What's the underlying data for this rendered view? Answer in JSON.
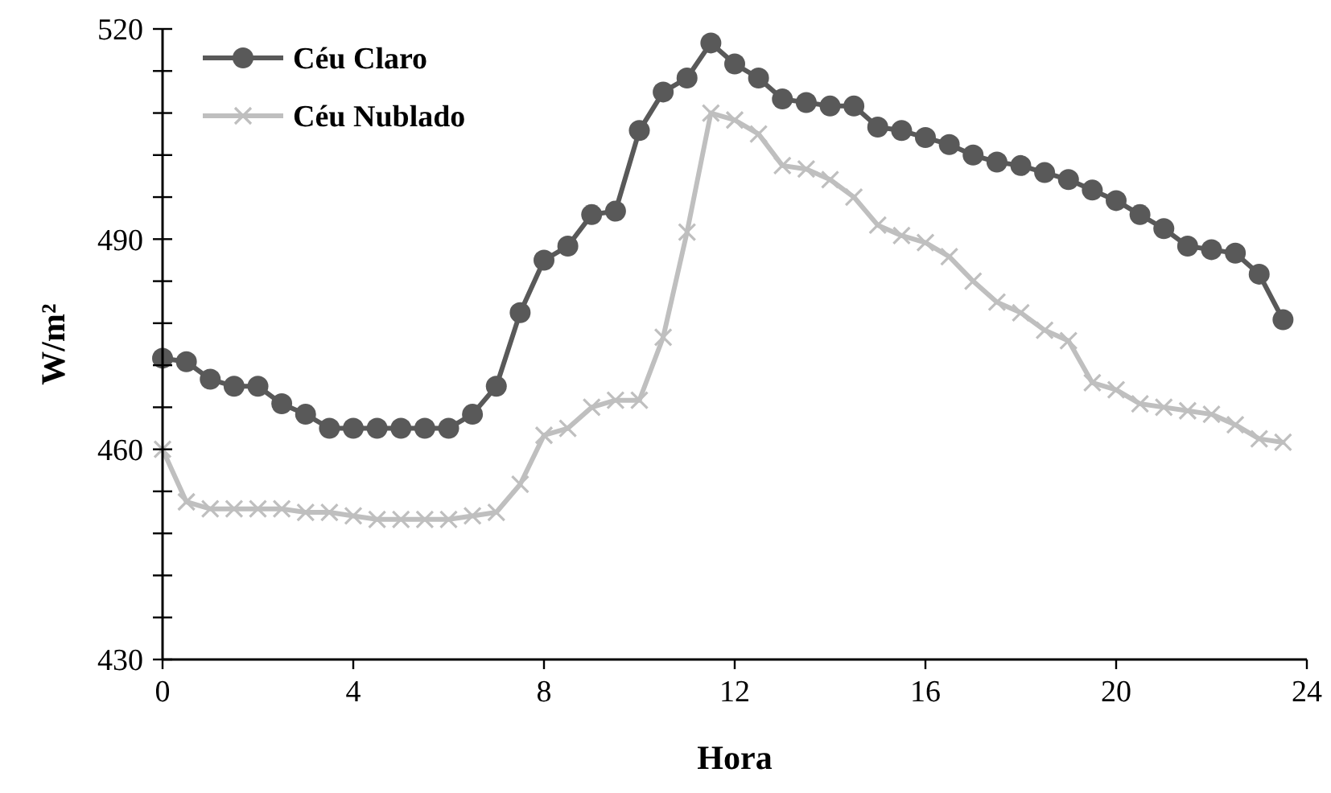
{
  "chart_data": {
    "type": "line",
    "xlabel": "Hora",
    "ylabel": "W/m²",
    "x": [
      0,
      0.5,
      1,
      1.5,
      2,
      2.5,
      3,
      3.5,
      4,
      4.5,
      5,
      5.5,
      6,
      6.5,
      7,
      7.5,
      8,
      8.5,
      9,
      9.5,
      10,
      10.5,
      11,
      11.5,
      12,
      12.5,
      13,
      13.5,
      14,
      14.5,
      15,
      15.5,
      16,
      16.5,
      17,
      17.5,
      18,
      18.5,
      19,
      19.5,
      20,
      20.5,
      21,
      21.5,
      22,
      22.5,
      23,
      23.5
    ],
    "series": [
      {
        "name": "Céu Claro",
        "color": "#595959",
        "marker": "circle",
        "values": [
          473,
          472.5,
          470,
          469,
          469,
          466.5,
          465,
          463,
          463,
          463,
          463,
          463,
          463,
          465,
          469,
          479.5,
          487,
          489,
          493.5,
          494,
          505.5,
          511,
          513,
          518,
          515,
          513,
          510,
          509.5,
          509,
          509,
          506,
          505.5,
          504.5,
          503.5,
          502,
          501,
          500.5,
          499.5,
          498.5,
          497,
          495.5,
          493.5,
          491.5,
          489,
          488.5,
          488,
          485,
          478.5
        ]
      },
      {
        "name": "Céu Nublado",
        "color": "#bfbfbf",
        "marker": "cross",
        "values": [
          460,
          452.5,
          451.5,
          451.5,
          451.5,
          451.5,
          451,
          451,
          450.5,
          450,
          450,
          450,
          450,
          450.5,
          451,
          455,
          462,
          463,
          466,
          467,
          467,
          476,
          491,
          508,
          507,
          505,
          500.5,
          500,
          498.5,
          496,
          492,
          490.5,
          489.5,
          487.5,
          484,
          481,
          479.5,
          477,
          475.5,
          469.5,
          468.5,
          466.5,
          466,
          465.5,
          465,
          463.5,
          461.5,
          461
        ]
      }
    ],
    "xlim": [
      0,
      24
    ],
    "xticks": [
      0,
      4,
      8,
      12,
      16,
      20,
      24
    ],
    "ylim": [
      430,
      520
    ],
    "yticks": [
      430,
      {
        "value": 436,
        "label": null
      },
      {
        "value": 442,
        "label": null
      },
      {
        "value": 448,
        "label": null
      },
      {
        "value": 454,
        "label": null
      },
      460,
      {
        "value": 466,
        "label": null
      },
      {
        "value": 472,
        "label": null
      },
      {
        "value": 478,
        "label": null
      },
      {
        "value": 484,
        "label": null
      },
      490,
      {
        "value": 496,
        "label": null
      },
      {
        "value": 502,
        "label": null
      },
      {
        "value": 508,
        "label": null
      },
      {
        "value": 514,
        "label": null
      },
      520
    ],
    "grid": false,
    "legend": "top left",
    "line_style": "solid"
  }
}
